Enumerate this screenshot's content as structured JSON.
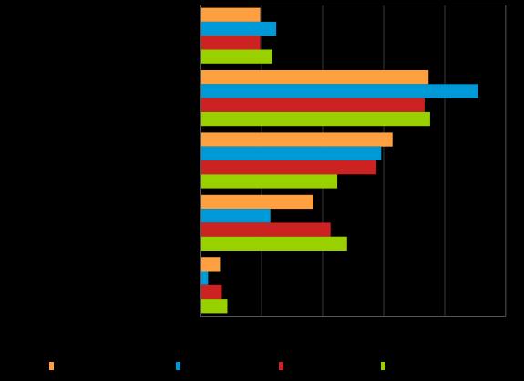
{
  "chart_data": {
    "type": "bar",
    "orientation": "horizontal",
    "title": "",
    "xlabel": "",
    "ylabel": "",
    "categories": [
      "",
      "",
      "",
      "",
      ""
    ],
    "xlim": [
      0,
      100
    ],
    "grid": true,
    "legend_position": "bottom",
    "series": [
      {
        "color": "#FFA040",
        "values": [
          19.6,
          74.7,
          62.9,
          37.0,
          6.4
        ]
      },
      {
        "color": "#0099D8",
        "values": [
          24.8,
          90.9,
          59.2,
          22.9,
          2.5
        ]
      },
      {
        "color": "#CC2222",
        "values": [
          19.6,
          73.4,
          57.6,
          42.6,
          7.0
        ]
      },
      {
        "color": "#99D000",
        "values": [
          23.5,
          75.2,
          44.8,
          48.0,
          8.8
        ]
      }
    ]
  }
}
